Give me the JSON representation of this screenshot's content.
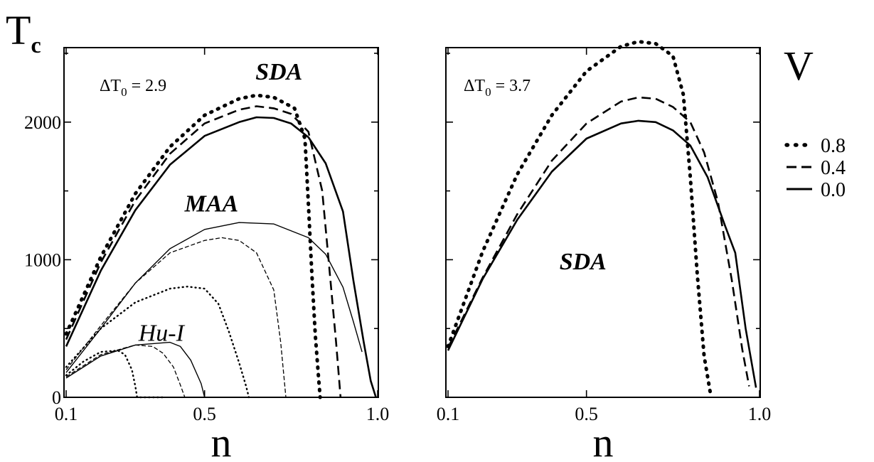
{
  "chart_data": [
    {
      "type": "line",
      "panel": "left",
      "ylabel_main": "T",
      "ylabel_sub": "c",
      "xlabel": "n",
      "annotation": {
        "delta": "ΔT",
        "sub": "0",
        "eq": " = 2.9"
      },
      "xlim": [
        0.1,
        1.0
      ],
      "ylim": [
        0,
        2500
      ],
      "xticks": [
        {
          "v": 0.1,
          "label": "0.1"
        },
        {
          "v": 0.5,
          "label": "0.5"
        },
        {
          "v": 1.0,
          "label": "1.0"
        }
      ],
      "yticks": [
        {
          "v": 0,
          "label": "0"
        },
        {
          "v": 1000,
          "label": "1000"
        },
        {
          "v": 2000,
          "label": "2000"
        }
      ],
      "group_labels": [
        {
          "text": "SDA",
          "n": 0.715,
          "t": 2310,
          "style": "bold"
        },
        {
          "text": "MAA",
          "n": 0.52,
          "t": 1350,
          "style": "bold"
        },
        {
          "text": "Hu-I",
          "n": 0.375,
          "t": 410,
          "style": "thin"
        }
      ],
      "series": [
        {
          "group": "SDA",
          "V": "0.8",
          "dash": "dot",
          "weight": "thick",
          "points": [
            [
              0.1,
              460
            ],
            [
              0.2,
              1020
            ],
            [
              0.3,
              1480
            ],
            [
              0.4,
              1820
            ],
            [
              0.5,
              2050
            ],
            [
              0.6,
              2170
            ],
            [
              0.65,
              2195
            ],
            [
              0.7,
              2180
            ],
            [
              0.76,
              2100
            ],
            [
              0.79,
              1880
            ],
            [
              0.8,
              1400
            ],
            [
              0.81,
              900
            ],
            [
              0.82,
              450
            ],
            [
              0.83,
              120
            ],
            [
              0.834,
              0
            ]
          ]
        },
        {
          "group": "SDA",
          "V": "0.4",
          "dash": "dash",
          "weight": "thick",
          "points": [
            [
              0.1,
              420
            ],
            [
              0.2,
              980
            ],
            [
              0.3,
              1430
            ],
            [
              0.4,
              1770
            ],
            [
              0.5,
              1990
            ],
            [
              0.6,
              2090
            ],
            [
              0.65,
              2115
            ],
            [
              0.7,
              2100
            ],
            [
              0.75,
              2060
            ],
            [
              0.8,
              1930
            ],
            [
              0.84,
              1500
            ],
            [
              0.86,
              950
            ],
            [
              0.88,
              400
            ],
            [
              0.893,
              0
            ]
          ]
        },
        {
          "group": "SDA",
          "V": "0.0",
          "dash": "solid",
          "weight": "thick",
          "points": [
            [
              0.1,
              370
            ],
            [
              0.2,
              920
            ],
            [
              0.3,
              1360
            ],
            [
              0.4,
              1690
            ],
            [
              0.5,
              1900
            ],
            [
              0.6,
              2000
            ],
            [
              0.65,
              2035
            ],
            [
              0.7,
              2030
            ],
            [
              0.75,
              1990
            ],
            [
              0.8,
              1890
            ],
            [
              0.85,
              1700
            ],
            [
              0.9,
              1350
            ],
            [
              0.93,
              850
            ],
            [
              0.96,
              400
            ],
            [
              0.98,
              120
            ],
            [
              0.995,
              0
            ]
          ]
        },
        {
          "group": "MAA",
          "V": "0.8",
          "dash": "dot",
          "weight": "thin",
          "points": [
            [
              0.1,
              220
            ],
            [
              0.2,
              500
            ],
            [
              0.3,
              690
            ],
            [
              0.4,
              790
            ],
            [
              0.45,
              805
            ],
            [
              0.5,
              790
            ],
            [
              0.54,
              680
            ],
            [
              0.57,
              480
            ],
            [
              0.6,
              250
            ],
            [
              0.62,
              80
            ],
            [
              0.628,
              0
            ]
          ]
        },
        {
          "group": "MAA",
          "V": "0.4",
          "dash": "dash",
          "weight": "thin",
          "points": [
            [
              0.1,
              200
            ],
            [
              0.2,
              520
            ],
            [
              0.3,
              830
            ],
            [
              0.4,
              1050
            ],
            [
              0.5,
              1140
            ],
            [
              0.55,
              1160
            ],
            [
              0.6,
              1140
            ],
            [
              0.65,
              1050
            ],
            [
              0.7,
              780
            ],
            [
              0.72,
              400
            ],
            [
              0.735,
              0
            ]
          ]
        },
        {
          "group": "MAA",
          "V": "0.0",
          "dash": "solid",
          "weight": "thin",
          "points": [
            [
              0.1,
              180
            ],
            [
              0.2,
              500
            ],
            [
              0.3,
              830
            ],
            [
              0.4,
              1080
            ],
            [
              0.5,
              1220
            ],
            [
              0.6,
              1270
            ],
            [
              0.7,
              1260
            ],
            [
              0.8,
              1160
            ],
            [
              0.85,
              1040
            ],
            [
              0.9,
              800
            ],
            [
              0.93,
              550
            ],
            [
              0.955,
              330
            ]
          ]
        },
        {
          "group": "Hu-I",
          "V": "0.8",
          "dash": "dot",
          "weight": "thin",
          "points": [
            [
              0.1,
              160
            ],
            [
              0.15,
              260
            ],
            [
              0.2,
              330
            ],
            [
              0.25,
              340
            ],
            [
              0.27,
              310
            ],
            [
              0.29,
              200
            ],
            [
              0.3,
              80
            ],
            [
              0.305,
              0
            ],
            [
              0.35,
              0
            ],
            [
              0.383,
              0
            ]
          ]
        },
        {
          "group": "Hu-I",
          "V": "0.4",
          "dash": "dash",
          "weight": "thin",
          "points": [
            [
              0.1,
              150
            ],
            [
              0.2,
              310
            ],
            [
              0.3,
              380
            ],
            [
              0.35,
              370
            ],
            [
              0.38,
              320
            ],
            [
              0.41,
              220
            ],
            [
              0.43,
              90
            ],
            [
              0.443,
              0
            ]
          ]
        },
        {
          "group": "Hu-I",
          "V": "0.0",
          "dash": "solid",
          "weight": "thin",
          "points": [
            [
              0.1,
              140
            ],
            [
              0.2,
              300
            ],
            [
              0.3,
              380
            ],
            [
              0.4,
              400
            ],
            [
              0.43,
              370
            ],
            [
              0.46,
              270
            ],
            [
              0.49,
              100
            ],
            [
              0.5,
              0
            ]
          ]
        }
      ]
    },
    {
      "type": "line",
      "panel": "right",
      "xlabel": "n",
      "annotation": {
        "delta": "ΔT",
        "sub": "0",
        "eq": " = 3.7"
      },
      "xlim": [
        0.1,
        1.0
      ],
      "ylim": [
        0,
        2500
      ],
      "xticks": [
        {
          "v": 0.1,
          "label": "0.1"
        },
        {
          "v": 0.5,
          "label": "0.5"
        },
        {
          "v": 1.0,
          "label": "1.0"
        }
      ],
      "yticks": [
        {
          "v": 0,
          "label": ""
        },
        {
          "v": 1000,
          "label": ""
        },
        {
          "v": 2000,
          "label": ""
        }
      ],
      "group_labels": [
        {
          "text": "SDA",
          "n": 0.49,
          "t": 930,
          "style": "bold"
        }
      ],
      "series": [
        {
          "group": "SDA",
          "V": "0.8",
          "dash": "dot",
          "weight": "thick",
          "points": [
            [
              0.1,
              370
            ],
            [
              0.2,
              1060
            ],
            [
              0.3,
              1620
            ],
            [
              0.4,
              2050
            ],
            [
              0.5,
              2370
            ],
            [
              0.6,
              2550
            ],
            [
              0.65,
              2585
            ],
            [
              0.7,
              2570
            ],
            [
              0.75,
              2480
            ],
            [
              0.78,
              2200
            ],
            [
              0.8,
              1600
            ],
            [
              0.82,
              900
            ],
            [
              0.84,
              300
            ],
            [
              0.86,
              0
            ]
          ]
        },
        {
          "group": "SDA",
          "V": "0.4",
          "dash": "dash",
          "weight": "thick",
          "points": [
            [
              0.1,
              360
            ],
            [
              0.2,
              870
            ],
            [
              0.3,
              1330
            ],
            [
              0.4,
              1720
            ],
            [
              0.5,
              1990
            ],
            [
              0.6,
              2150
            ],
            [
              0.65,
              2180
            ],
            [
              0.7,
              2170
            ],
            [
              0.75,
              2110
            ],
            [
              0.8,
              2000
            ],
            [
              0.84,
              1780
            ],
            [
              0.88,
              1420
            ],
            [
              0.92,
              850
            ],
            [
              0.95,
              350
            ],
            [
              0.97,
              80
            ]
          ]
        },
        {
          "group": "SDA",
          "V": "0.0",
          "dash": "solid",
          "weight": "thick",
          "points": [
            [
              0.1,
              340
            ],
            [
              0.2,
              860
            ],
            [
              0.3,
              1290
            ],
            [
              0.4,
              1640
            ],
            [
              0.5,
              1880
            ],
            [
              0.6,
              1990
            ],
            [
              0.65,
              2010
            ],
            [
              0.7,
              2000
            ],
            [
              0.75,
              1940
            ],
            [
              0.8,
              1830
            ],
            [
              0.85,
              1600
            ],
            [
              0.9,
              1250
            ],
            [
              0.93,
              1050
            ],
            [
              0.96,
              500
            ],
            [
              0.99,
              70
            ]
          ]
        }
      ]
    }
  ],
  "legend": {
    "title": "V",
    "entries": [
      {
        "label": "0.8",
        "dash": "dot"
      },
      {
        "label": "0.4",
        "dash": "dash"
      },
      {
        "label": "0.0",
        "dash": "solid"
      }
    ]
  }
}
